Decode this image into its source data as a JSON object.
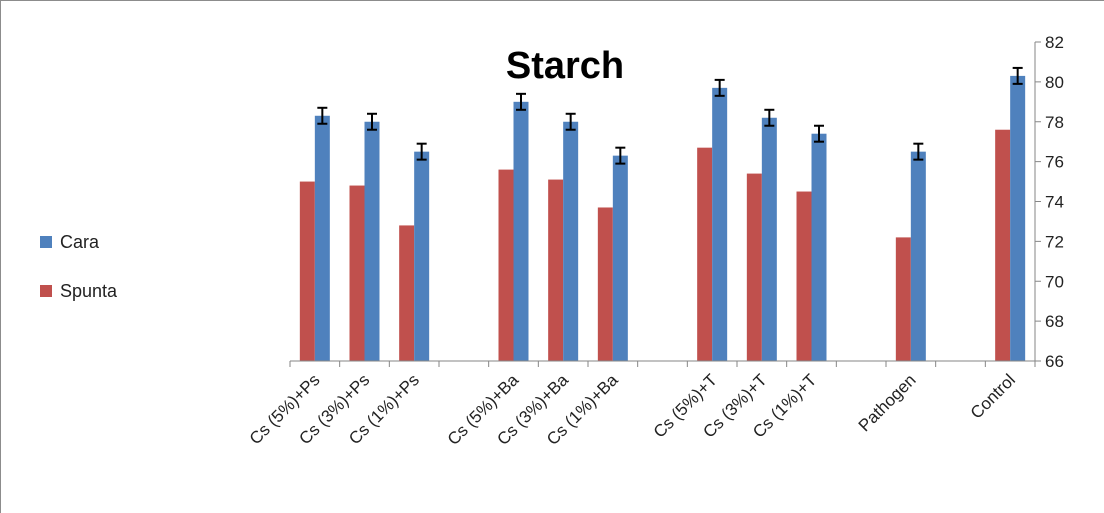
{
  "chart_data": {
    "type": "bar",
    "title": "Starch",
    "xlabel": "",
    "ylabel": "",
    "ylim": [
      66,
      82
    ],
    "yticks": [
      66,
      68,
      70,
      72,
      74,
      76,
      78,
      80,
      82
    ],
    "y_axis_side": "right",
    "grid": false,
    "legend_position": "left",
    "categories": [
      "Cs (5%)+Ps",
      "Cs (3%)+Ps",
      "Cs (1%)+Ps",
      "",
      "Cs (5%)+Ba",
      "Cs (3%)+Ba",
      "Cs (1%)+Ba",
      "",
      "Cs (5%)+T",
      "Cs (3%)+T",
      "Cs (1%)+T",
      "",
      "Pathogen",
      "",
      "Control"
    ],
    "series": [
      {
        "name": "Spunta",
        "color": "#c0504d",
        "values": [
          75.0,
          74.8,
          72.8,
          null,
          75.6,
          75.1,
          73.7,
          null,
          76.7,
          75.4,
          74.5,
          null,
          72.2,
          null,
          77.6
        ],
        "errors": null
      },
      {
        "name": "Cara",
        "color": "#4f81bd",
        "values": [
          78.3,
          78.0,
          76.5,
          null,
          79.0,
          78.0,
          76.3,
          null,
          79.7,
          78.2,
          77.4,
          null,
          76.5,
          null,
          80.3
        ],
        "errors": [
          0.4,
          0.4,
          0.4,
          null,
          0.4,
          0.4,
          0.4,
          null,
          0.4,
          0.4,
          0.4,
          null,
          0.4,
          null,
          0.4
        ]
      }
    ]
  },
  "legend": [
    {
      "name": "Cara",
      "color": "#4f81bd"
    },
    {
      "name": "Spunta",
      "color": "#c0504d"
    }
  ]
}
